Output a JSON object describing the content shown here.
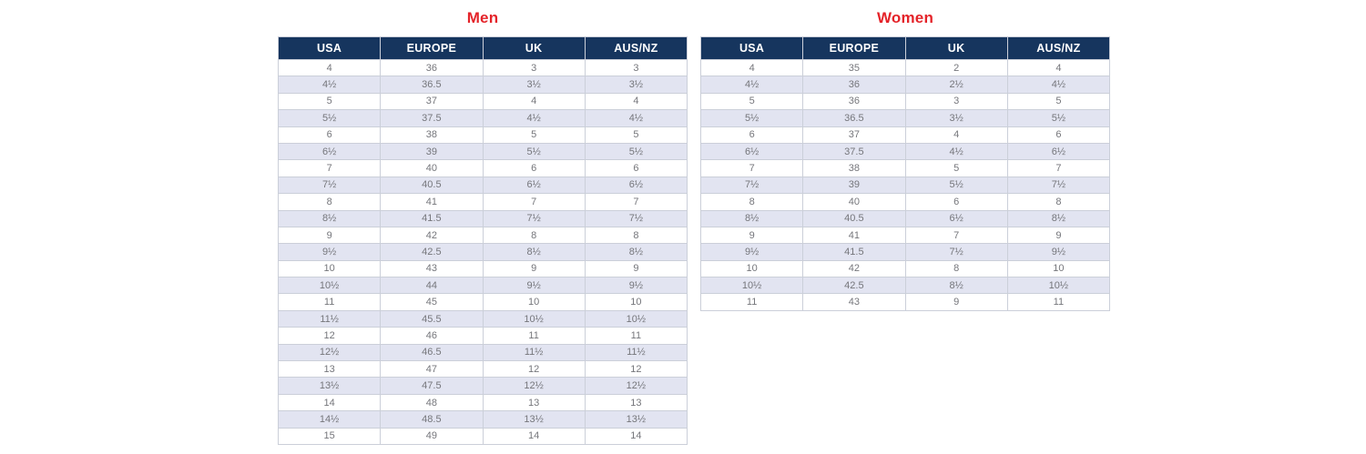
{
  "colors": {
    "title_red": "#e42329",
    "header_navy": "#16355e",
    "row_alt": "#e2e4f1",
    "cell_text": "#75767b",
    "border": "#cbcfd9",
    "header_text": "#ffffff",
    "page_bg": "#ffffff"
  },
  "chart_data": [
    {
      "type": "table",
      "title": "Men",
      "columns": [
        "USA",
        "EUROPE",
        "UK",
        "AUS/NZ"
      ],
      "rows": [
        [
          "4",
          "36",
          "3",
          "3"
        ],
        [
          "4½",
          "36.5",
          "3½",
          "3½"
        ],
        [
          "5",
          "37",
          "4",
          "4"
        ],
        [
          "5½",
          "37.5",
          "4½",
          "4½"
        ],
        [
          "6",
          "38",
          "5",
          "5"
        ],
        [
          "6½",
          "39",
          "5½",
          "5½"
        ],
        [
          "7",
          "40",
          "6",
          "6"
        ],
        [
          "7½",
          "40.5",
          "6½",
          "6½"
        ],
        [
          "8",
          "41",
          "7",
          "7"
        ],
        [
          "8½",
          "41.5",
          "7½",
          "7½"
        ],
        [
          "9",
          "42",
          "8",
          "8"
        ],
        [
          "9½",
          "42.5",
          "8½",
          "8½"
        ],
        [
          "10",
          "43",
          "9",
          "9"
        ],
        [
          "10½",
          "44",
          "9½",
          "9½"
        ],
        [
          "11",
          "45",
          "10",
          "10"
        ],
        [
          "11½",
          "45.5",
          "10½",
          "10½"
        ],
        [
          "12",
          "46",
          "11",
          "11"
        ],
        [
          "12½",
          "46.5",
          "11½",
          "11½"
        ],
        [
          "13",
          "47",
          "12",
          "12"
        ],
        [
          "13½",
          "47.5",
          "12½",
          "12½"
        ],
        [
          "14",
          "48",
          "13",
          "13"
        ],
        [
          "14½",
          "48.5",
          "13½",
          "13½"
        ],
        [
          "15",
          "49",
          "14",
          "14"
        ]
      ]
    },
    {
      "type": "table",
      "title": "Women",
      "columns": [
        "USA",
        "EUROPE",
        "UK",
        "AUS/NZ"
      ],
      "rows": [
        [
          "4",
          "35",
          "2",
          "4"
        ],
        [
          "4½",
          "36",
          "2½",
          "4½"
        ],
        [
          "5",
          "36",
          "3",
          "5"
        ],
        [
          "5½",
          "36.5",
          "3½",
          "5½"
        ],
        [
          "6",
          "37",
          "4",
          "6"
        ],
        [
          "6½",
          "37.5",
          "4½",
          "6½"
        ],
        [
          "7",
          "38",
          "5",
          "7"
        ],
        [
          "7½",
          "39",
          "5½",
          "7½"
        ],
        [
          "8",
          "40",
          "6",
          "8"
        ],
        [
          "8½",
          "40.5",
          "6½",
          "8½"
        ],
        [
          "9",
          "41",
          "7",
          "9"
        ],
        [
          "9½",
          "41.5",
          "7½",
          "9½"
        ],
        [
          "10",
          "42",
          "8",
          "10"
        ],
        [
          "10½",
          "42.5",
          "8½",
          "10½"
        ],
        [
          "11",
          "43",
          "9",
          "11"
        ]
      ]
    }
  ]
}
